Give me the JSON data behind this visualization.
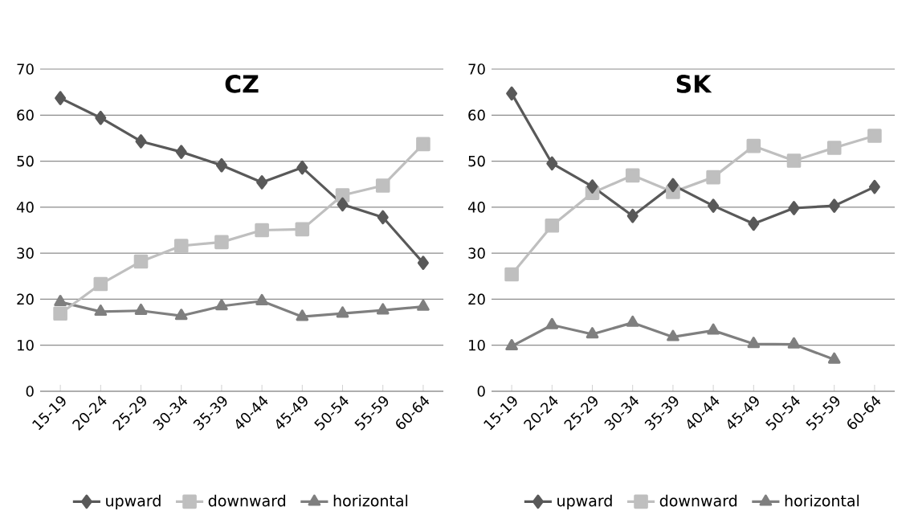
{
  "chart_data": [
    {
      "type": "line",
      "title": "CZ",
      "categories": [
        "15-19",
        "20-24",
        "25-29",
        "30-34",
        "35-39",
        "40-44",
        "45-49",
        "50-54",
        "55-59",
        "60-64"
      ],
      "ylim": [
        0,
        70
      ],
      "yticks": [
        0,
        10,
        20,
        30,
        40,
        50,
        60,
        70
      ],
      "grid": "y",
      "legend": "bottom",
      "line_style": "solid",
      "series": [
        {
          "name": "upward",
          "color": "#595959",
          "marker": "diamond",
          "values": [
            63.7,
            59.4,
            54.3,
            52.0,
            49.1,
            45.4,
            48.6,
            40.6,
            37.8,
            27.9
          ]
        },
        {
          "name": "downward",
          "color": "#bfbfbf",
          "marker": "square",
          "values": [
            16.9,
            23.3,
            28.2,
            31.6,
            32.4,
            35.0,
            35.2,
            42.6,
            44.7,
            53.7
          ]
        },
        {
          "name": "horizontal",
          "color": "#7f7f7f",
          "marker": "triangle",
          "values": [
            19.4,
            17.3,
            17.5,
            16.4,
            18.5,
            19.6,
            16.2,
            16.9,
            17.6,
            18.4
          ]
        }
      ]
    },
    {
      "type": "line",
      "title": "SK",
      "categories": [
        "15-19",
        "20-24",
        "25-29",
        "30-34",
        "35-39",
        "40-44",
        "45-49",
        "50-54",
        "55-59",
        "60-64"
      ],
      "ylim": [
        0,
        70
      ],
      "yticks": [
        0,
        10,
        20,
        30,
        40,
        50,
        60,
        70
      ],
      "grid": "y",
      "legend": "bottom",
      "line_style": "solid",
      "series": [
        {
          "name": "upward",
          "color": "#595959",
          "marker": "diamond",
          "values": [
            64.7,
            49.5,
            44.5,
            38.1,
            44.8,
            40.3,
            36.4,
            39.8,
            40.3,
            44.4
          ]
        },
        {
          "name": "downward",
          "color": "#bfbfbf",
          "marker": "square",
          "values": [
            25.4,
            36.0,
            43.1,
            46.9,
            43.3,
            46.5,
            53.3,
            50.1,
            52.9,
            55.5
          ]
        },
        {
          "name": "horizontal",
          "color": "#7f7f7f",
          "marker": "triangle",
          "values": [
            9.8,
            14.4,
            12.4,
            14.9,
            11.8,
            13.2,
            10.3,
            10.2,
            6.9,
            null
          ]
        }
      ]
    }
  ]
}
